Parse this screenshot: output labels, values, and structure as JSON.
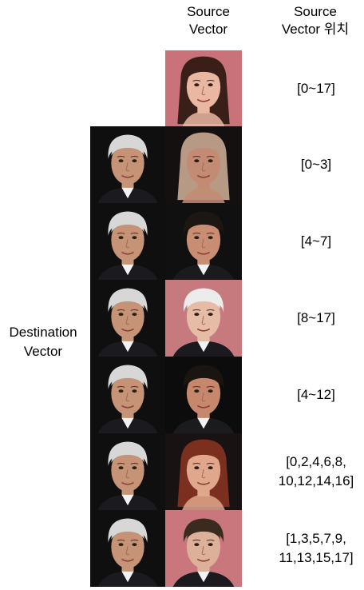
{
  "headers": {
    "source": "Source\nVector",
    "position": "Source\nVector 위치"
  },
  "side_label": "Destination\nVector",
  "source_face": {
    "bg": "#c9727a",
    "hair": "#3a1f18",
    "skin": "#e9b7a2",
    "gender": "female"
  },
  "rows": [
    {
      "range": "[0~17]"
    },
    {
      "range": "[0~3]",
      "dest": {
        "bg": "#0f0f0f",
        "hair": "#d7d7d7",
        "skin": "#c79376",
        "gender": "male"
      },
      "result": {
        "bg": "#141010",
        "hair": "#b79a86",
        "skin": "#c48b74",
        "gender": "female"
      }
    },
    {
      "range": "[4~7]",
      "dest": {
        "bg": "#0f0f0f",
        "hair": "#d7d7d7",
        "skin": "#c79376",
        "gender": "male"
      },
      "result": {
        "bg": "#101010",
        "hair": "#1c1712",
        "skin": "#c88d72",
        "gender": "male"
      }
    },
    {
      "range": "[8~17]",
      "dest": {
        "bg": "#0f0f0f",
        "hair": "#d7d7d7",
        "skin": "#c79376",
        "gender": "male"
      },
      "result": {
        "bg": "#c77a7e",
        "hair": "#ececec",
        "skin": "#e6bca6",
        "gender": "male"
      }
    },
    {
      "range": "[4~12]",
      "dest": {
        "bg": "#0f0f0f",
        "hair": "#d7d7d7",
        "skin": "#c79376",
        "gender": "male"
      },
      "result": {
        "bg": "#0c0c0c",
        "hair": "#1a1511",
        "skin": "#c6876d",
        "gender": "male"
      }
    },
    {
      "range": "[0,2,4,6,8,\n10,12,14,16]",
      "dest": {
        "bg": "#0f0f0f",
        "hair": "#d7d7d7",
        "skin": "#c79376",
        "gender": "male"
      },
      "result": {
        "bg": "#181212",
        "hair": "#7a2f1f",
        "skin": "#e0a78c",
        "gender": "female"
      }
    },
    {
      "range": "[1,3,5,7,9,\n11,13,15,17]",
      "dest": {
        "bg": "#0f0f0f",
        "hair": "#d7d7d7",
        "skin": "#c79376",
        "gender": "male"
      },
      "result": {
        "bg": "#c9777c",
        "hair": "#3b2a1e",
        "skin": "#ddb09a",
        "gender": "male"
      }
    }
  ]
}
